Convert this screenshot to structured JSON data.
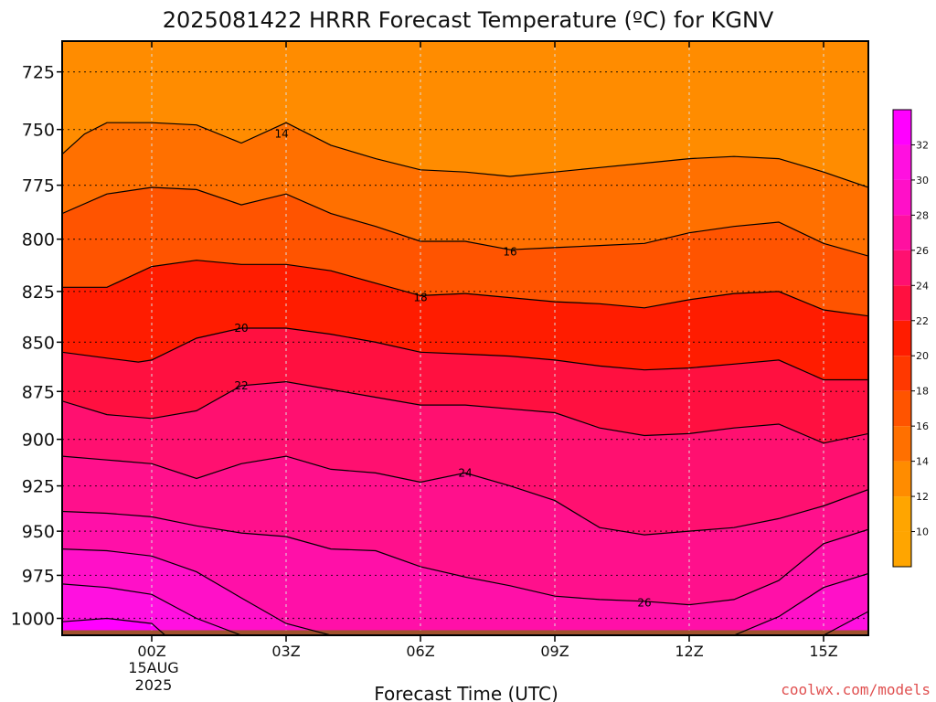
{
  "chart_data": {
    "type": "contour",
    "title": "2025081422 HRRR Forecast Temperature (ºC) for KGNV",
    "xlabel": "Forecast Time (UTC)",
    "ylabel": "",
    "x_range_hours": [
      -2,
      16
    ],
    "y_range_hpa": [
      1010,
      712
    ],
    "y_scale": "log",
    "x_ticks": [
      {
        "hour": 0,
        "label": "00Z"
      },
      {
        "hour": 3,
        "label": "03Z"
      },
      {
        "hour": 6,
        "label": "06Z"
      },
      {
        "hour": 9,
        "label": "09Z"
      },
      {
        "hour": 12,
        "label": "12Z"
      },
      {
        "hour": 15,
        "label": "15Z"
      }
    ],
    "date_label": [
      "15AUG",
      "2025"
    ],
    "y_ticks": [
      725,
      750,
      775,
      800,
      825,
      850,
      875,
      900,
      925,
      950,
      975,
      1000
    ],
    "grid": true,
    "contour_interval": 2,
    "levels": [
      {
        "t": 14,
        "label": "14",
        "label_at": [
          2.9,
          752
        ],
        "pts": [
          [
            -2.0,
            761
          ],
          [
            -1.5,
            752
          ],
          [
            -1.0,
            747
          ],
          [
            0,
            747
          ],
          [
            1.0,
            748
          ],
          [
            2.0,
            756
          ],
          [
            3.0,
            747
          ],
          [
            4.0,
            757
          ],
          [
            5.0,
            763
          ],
          [
            6.0,
            768
          ],
          [
            7.0,
            769
          ],
          [
            8.0,
            771
          ],
          [
            9.0,
            769
          ],
          [
            10.0,
            767
          ],
          [
            11.0,
            765
          ],
          [
            12.0,
            763
          ],
          [
            13.0,
            762
          ],
          [
            14.0,
            763
          ],
          [
            15.0,
            769
          ],
          [
            16.0,
            776
          ]
        ]
      },
      {
        "t": 16,
        "label": "16",
        "label_at": [
          8.0,
          806
        ],
        "pts": [
          [
            -2.0,
            788
          ],
          [
            -1.0,
            779
          ],
          [
            0,
            776
          ],
          [
            1.0,
            777
          ],
          [
            2.0,
            784
          ],
          [
            3.0,
            779
          ],
          [
            4.0,
            788
          ],
          [
            5.0,
            794
          ],
          [
            6.0,
            801
          ],
          [
            7.0,
            801
          ],
          [
            8.0,
            805
          ],
          [
            9.0,
            804
          ],
          [
            10.0,
            803
          ],
          [
            11.0,
            802
          ],
          [
            12.0,
            797
          ],
          [
            13.0,
            794
          ],
          [
            14.0,
            792
          ],
          [
            15.0,
            802
          ],
          [
            16.0,
            808
          ]
        ]
      },
      {
        "t": 18,
        "label": "18",
        "label_at": [
          6.0,
          828
        ],
        "pts": [
          [
            -2.0,
            823
          ],
          [
            -1.0,
            823
          ],
          [
            0,
            813
          ],
          [
            1.0,
            810
          ],
          [
            2.0,
            812
          ],
          [
            3.0,
            812
          ],
          [
            4.0,
            815
          ],
          [
            5.0,
            821
          ],
          [
            6.0,
            827
          ],
          [
            7.0,
            826
          ],
          [
            8.0,
            828
          ],
          [
            9.0,
            830
          ],
          [
            10.0,
            831
          ],
          [
            11.0,
            833
          ],
          [
            12.0,
            829
          ],
          [
            13.0,
            826
          ],
          [
            14.0,
            825
          ],
          [
            15.0,
            834
          ],
          [
            16.0,
            837
          ]
        ]
      },
      {
        "t": 20,
        "label": "20",
        "label_at": [
          2.0,
          843
        ],
        "pts": [
          [
            -2.0,
            855
          ],
          [
            -1.0,
            858
          ],
          [
            -0.3,
            860
          ],
          [
            0,
            859
          ],
          [
            1.0,
            848
          ],
          [
            2.0,
            843
          ],
          [
            3.0,
            843
          ],
          [
            4.0,
            846
          ],
          [
            5.0,
            850
          ],
          [
            6.0,
            855
          ],
          [
            7.0,
            856
          ],
          [
            8.0,
            857
          ],
          [
            9.0,
            859
          ],
          [
            10.0,
            862
          ],
          [
            11.0,
            864
          ],
          [
            12.0,
            863
          ],
          [
            13.0,
            861
          ],
          [
            14.0,
            859
          ],
          [
            15.0,
            869
          ],
          [
            16.0,
            869
          ]
        ]
      },
      {
        "t": 22,
        "label": "22",
        "label_at": [
          2.0,
          872
        ],
        "pts": [
          [
            -2.0,
            880
          ],
          [
            -1.0,
            887
          ],
          [
            0,
            889
          ],
          [
            1.0,
            885
          ],
          [
            2.0,
            872
          ],
          [
            3.0,
            870
          ],
          [
            4.0,
            874
          ],
          [
            5.0,
            878
          ],
          [
            6.0,
            882
          ],
          [
            7.0,
            882
          ],
          [
            8.0,
            884
          ],
          [
            9.0,
            886
          ],
          [
            10.0,
            894
          ],
          [
            11.0,
            898
          ],
          [
            12.0,
            897
          ],
          [
            13.0,
            894
          ],
          [
            14.0,
            892
          ],
          [
            15.0,
            902
          ],
          [
            16.0,
            897
          ]
        ]
      },
      {
        "t": 24,
        "label": "24",
        "label_at": [
          7.0,
          918
        ],
        "pts": [
          [
            -2.0,
            909
          ],
          [
            -1.0,
            911
          ],
          [
            0,
            913
          ],
          [
            1.0,
            921
          ],
          [
            2.0,
            913
          ],
          [
            3.0,
            909
          ],
          [
            4.0,
            916
          ],
          [
            5.0,
            918
          ],
          [
            6.0,
            923
          ],
          [
            7.0,
            918
          ],
          [
            8.0,
            925
          ],
          [
            9.0,
            933
          ],
          [
            10.0,
            948
          ],
          [
            11.0,
            952
          ],
          [
            12.0,
            950
          ],
          [
            13.0,
            948
          ],
          [
            14.0,
            943
          ],
          [
            15.0,
            936
          ],
          [
            16.0,
            927
          ]
        ]
      },
      {
        "t": 26,
        "label": "26",
        "label_at": [
          11.0,
          991
        ],
        "pts": [
          [
            -2.0,
            939
          ],
          [
            -1.0,
            940
          ],
          [
            0,
            942
          ],
          [
            1.0,
            947
          ],
          [
            2.0,
            951
          ],
          [
            3.0,
            953
          ],
          [
            4.0,
            960
          ],
          [
            5.0,
            961
          ],
          [
            6.0,
            970
          ],
          [
            7.0,
            976
          ],
          [
            8.0,
            981
          ],
          [
            9.0,
            987
          ],
          [
            10.0,
            989
          ],
          [
            11.0,
            990
          ],
          [
            12.0,
            992
          ],
          [
            13.0,
            989
          ],
          [
            14.0,
            978
          ],
          [
            15.0,
            957
          ],
          [
            16.0,
            949
          ]
        ]
      },
      {
        "t": 28,
        "label": "",
        "label_at": null,
        "pts": [
          [
            -2.0,
            960
          ],
          [
            -1.0,
            961
          ],
          [
            0,
            964
          ],
          [
            1.0,
            973
          ],
          [
            2.0,
            988
          ],
          [
            3.0,
            1003
          ],
          [
            4.0,
            1010
          ]
        ]
      },
      {
        "t": 28,
        "label": "",
        "label_at": null,
        "pts": [
          [
            13.0,
            1010
          ],
          [
            14.0,
            999
          ],
          [
            15.0,
            982
          ],
          [
            16.0,
            974
          ]
        ]
      },
      {
        "t": 30,
        "label": "",
        "label_at": null,
        "pts": [
          [
            -2.0,
            980
          ],
          [
            -1.0,
            982
          ],
          [
            0,
            986
          ],
          [
            1.0,
            1000
          ],
          [
            2.0,
            1010
          ]
        ]
      },
      {
        "t": 30,
        "label": "",
        "label_at": null,
        "pts": [
          [
            15.0,
            1010
          ],
          [
            16.0,
            996
          ]
        ]
      },
      {
        "t": 32,
        "label": "",
        "label_at": null,
        "pts": [
          [
            -2.0,
            1002
          ],
          [
            -1.0,
            1000
          ],
          [
            0,
            1003
          ],
          [
            0.3,
            1010
          ]
        ]
      }
    ],
    "ground_level_hpa": 1007,
    "colorbar": {
      "ticks": [
        "10",
        "12",
        "14",
        "16",
        "18",
        "20",
        "22",
        "24",
        "26",
        "28",
        "30",
        "32"
      ],
      "colors": [
        "#ffa500",
        "#ff8c00",
        "#ff7000",
        "#ff5400",
        "#ff3800",
        "#ff1c00",
        "#ff1040",
        "#ff1070",
        "#ff10a0",
        "#ff10c8",
        "#ff10e0",
        "#ff00ff"
      ]
    }
  },
  "band_colors": {
    "lt14": "#ff8c00",
    "14to16": "#ff7000",
    "16to18": "#ff5400",
    "18to20": "#ff1c00",
    "20to22": "#ff1040",
    "22to24": "#ff1070",
    "24to26": "#ff108c",
    "26to28": "#ff10a8",
    "28to30": "#ff10c8",
    "30to32": "#ff10e0",
    "gt32": "#ff00ff",
    "ground": "#a0522d"
  },
  "credit": {
    "text": "coolwx.com/models",
    "color": "#e05050"
  }
}
